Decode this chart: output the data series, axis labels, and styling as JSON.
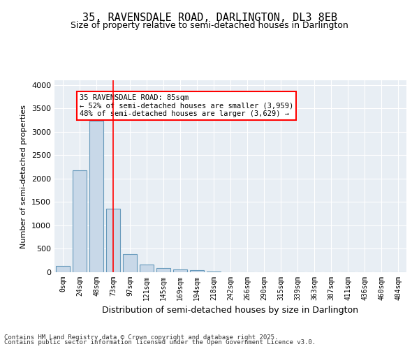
{
  "title1": "35, RAVENSDALE ROAD, DARLINGTON, DL3 8EB",
  "title2": "Size of property relative to semi-detached houses in Darlington",
  "xlabel": "Distribution of semi-detached houses by size in Darlington",
  "ylabel": "Number of semi-detached properties",
  "bar_labels": [
    "0sqm",
    "24sqm",
    "48sqm",
    "73sqm",
    "97sqm",
    "121sqm",
    "145sqm",
    "169sqm",
    "194sqm",
    "218sqm",
    "242sqm",
    "266sqm",
    "290sqm",
    "315sqm",
    "339sqm",
    "363sqm",
    "387sqm",
    "411sqm",
    "436sqm",
    "460sqm",
    "484sqm"
  ],
  "bar_heights": [
    130,
    2170,
    3230,
    1350,
    390,
    160,
    90,
    55,
    40,
    10,
    5,
    2,
    1,
    0,
    0,
    0,
    0,
    0,
    0,
    0,
    0
  ],
  "bar_color": "#c8d8e8",
  "bar_edge_color": "#6699bb",
  "highlight_bar_index": 3,
  "highlight_color": "#c8d8e8",
  "red_line_x": 3,
  "property_label": "35 RAVENSDALE ROAD: 85sqm",
  "smaller_pct": "52%",
  "smaller_count": "3,959",
  "larger_pct": "48%",
  "larger_count": "3,629",
  "annotation_text_line1": "35 RAVENSDALE ROAD: 85sqm",
  "annotation_text_line2": "← 52% of semi-detached houses are smaller (3,959)",
  "annotation_text_line3": "48% of semi-detached houses are larger (3,629) →",
  "ylim": [
    0,
    4100
  ],
  "yticks": [
    0,
    500,
    1000,
    1500,
    2000,
    2500,
    3000,
    3500,
    4000
  ],
  "background_color": "#e8eef4",
  "footer1": "Contains HM Land Registry data © Crown copyright and database right 2025.",
  "footer2": "Contains public sector information licensed under the Open Government Licence v3.0."
}
